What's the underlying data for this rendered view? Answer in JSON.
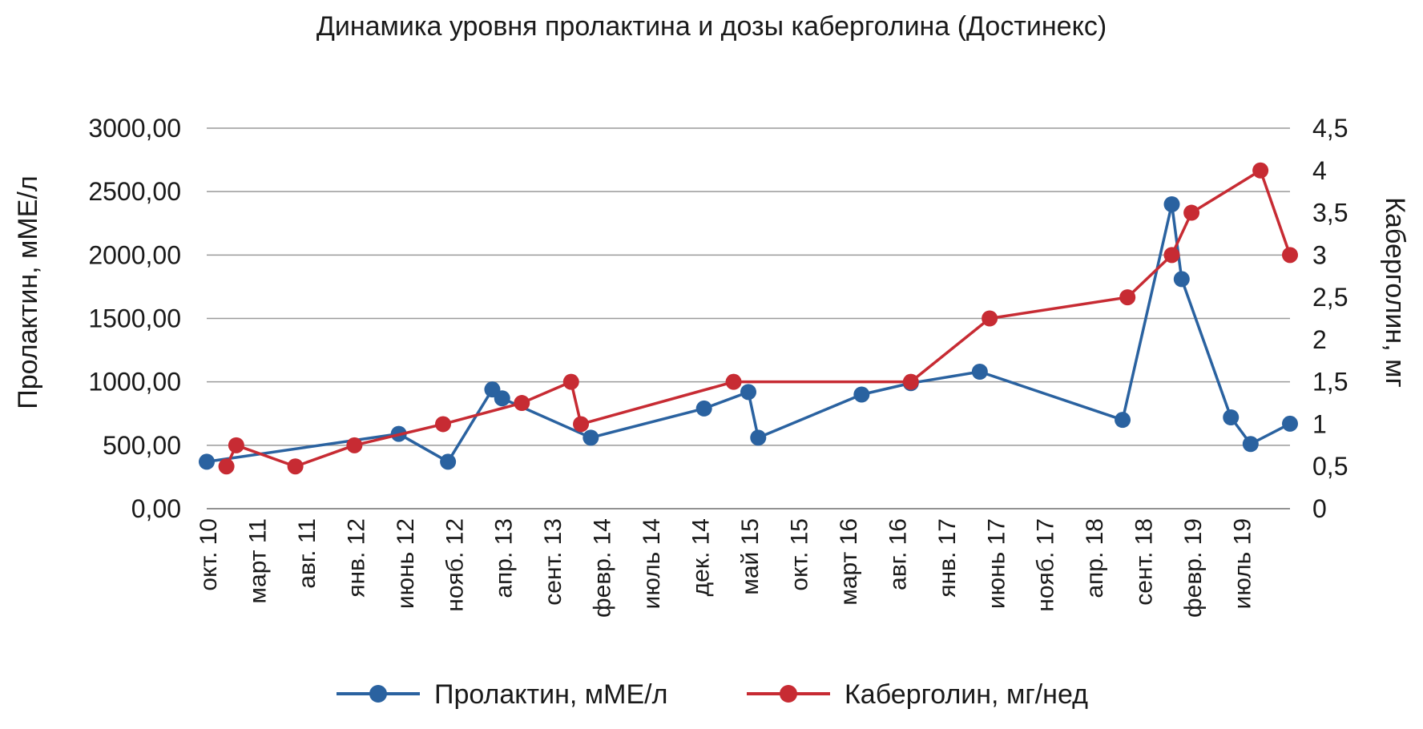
{
  "chart_data": {
    "type": "line",
    "title": "Динамика уровня пролактина и дозы каберголина (Достинекс)",
    "xlabel": "",
    "x_categories": [
      "окт. 10",
      "март 11",
      "авг. 11",
      "янв. 12",
      "июнь 12",
      "нояб. 12",
      "апр. 13",
      "сент. 13",
      "февр. 14",
      "июль 14",
      "дек. 14",
      "май 15",
      "окт. 15",
      "март 16",
      "авг. 16",
      "янв. 17",
      "июнь 17",
      "нояб. 17",
      "апр. 18",
      "сент. 18",
      "февр. 19",
      "июль 19"
    ],
    "x_range": [
      0,
      22
    ],
    "y_left": {
      "label": "Пролактин, мМЕ/л",
      "range": [
        0,
        3000
      ],
      "ticks": [
        0,
        500,
        1000,
        1500,
        2000,
        2500,
        3000
      ],
      "tick_labels": [
        "0,00",
        "500,00",
        "1000,00",
        "1500,00",
        "2000,00",
        "2500,00",
        "3000,00"
      ]
    },
    "y_right": {
      "label": "Каберголин, мг",
      "range": [
        0,
        4.5
      ],
      "ticks": [
        0,
        0.5,
        1,
        1.5,
        2,
        2.5,
        3,
        3.5,
        4,
        4.5
      ],
      "tick_labels": [
        "0",
        "0,5",
        "1",
        "1,5",
        "2",
        "2,5",
        "3",
        "3,5",
        "4",
        "4,5"
      ]
    },
    "series": [
      {
        "name": "Пролактин, мМЕ/л",
        "axis": "left",
        "color": "#2a62a0",
        "points": [
          [
            0.0,
            370
          ],
          [
            3.9,
            590
          ],
          [
            4.9,
            370
          ],
          [
            5.8,
            940
          ],
          [
            6.0,
            870
          ],
          [
            7.8,
            560
          ],
          [
            10.1,
            790
          ],
          [
            11.0,
            920
          ],
          [
            11.2,
            560
          ],
          [
            13.3,
            900
          ],
          [
            14.3,
            990
          ],
          [
            15.7,
            1080
          ],
          [
            18.6,
            700
          ],
          [
            19.6,
            2400
          ],
          [
            19.8,
            1810
          ],
          [
            20.8,
            720
          ],
          [
            21.2,
            510
          ],
          [
            22.0,
            670
          ]
        ]
      },
      {
        "name": "Каберголин, мг/нед",
        "axis": "right",
        "color": "#c72b33",
        "points": [
          [
            0.4,
            0.5
          ],
          [
            0.6,
            0.75
          ],
          [
            1.8,
            0.5
          ],
          [
            3.0,
            0.75
          ],
          [
            4.8,
            1.0
          ],
          [
            6.4,
            1.25
          ],
          [
            7.4,
            1.5
          ],
          [
            7.6,
            1.0
          ],
          [
            10.7,
            1.5
          ],
          [
            14.3,
            1.5
          ],
          [
            15.9,
            2.25
          ],
          [
            18.7,
            2.5
          ],
          [
            19.6,
            3.0
          ],
          [
            20.0,
            3.5
          ],
          [
            21.4,
            4.0
          ],
          [
            22.0,
            3.0
          ]
        ]
      }
    ],
    "legend": {
      "position": "bottom",
      "entries": [
        "Пролактин, мМЕ/л",
        "Каберголин, мг/нед"
      ]
    },
    "grid": true
  }
}
